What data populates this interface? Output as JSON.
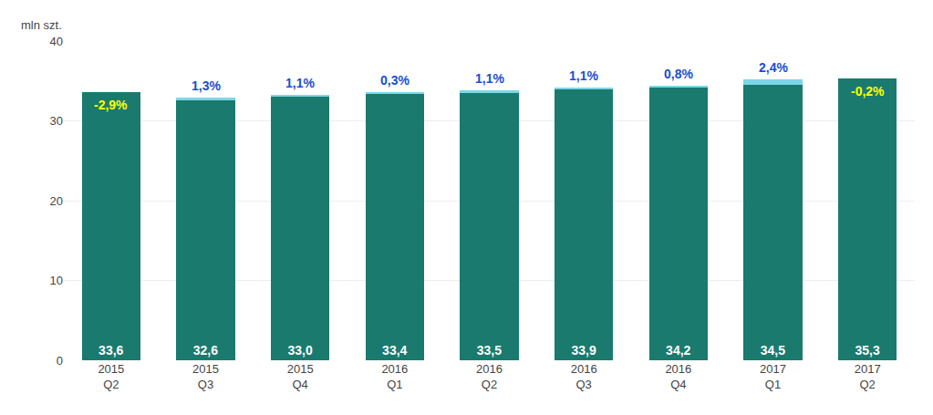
{
  "chart_data": {
    "type": "bar",
    "ylabel": "mln szt.",
    "categories": [
      "2015\nQ2",
      "2015\nQ3",
      "2015\nQ4",
      "2016\nQ1",
      "2016\nQ2",
      "2016\nQ3",
      "2016\nQ4",
      "2017\nQ1",
      "2017\nQ2"
    ],
    "series": [
      {
        "color": "#1a7a6e",
        "values": [
          33.6,
          32.6,
          33.0,
          33.4,
          33.5,
          33.9,
          34.2,
          34.5,
          35.3
        ],
        "value_labels": [
          "33,6",
          "32,6",
          "33,0",
          "33,4",
          "33,5",
          "33,9",
          "34,2",
          "34,5",
          "35,3"
        ]
      },
      {
        "color": "#7dd6e8",
        "values": [
          0.0,
          0.35,
          0.3,
          0.2,
          0.3,
          0.28,
          0.22,
          0.72,
          0.0
        ]
      }
    ],
    "stacked": true,
    "data_labels": true,
    "annotations": [
      {
        "text": "-2,9%",
        "color": "yellow",
        "inside": true
      },
      {
        "text": "1,3%",
        "color": "#1a4fcc",
        "inside": false
      },
      {
        "text": "1,1%",
        "color": "#1a4fcc",
        "inside": false
      },
      {
        "text": "0,3%",
        "color": "#1a4fcc",
        "inside": false
      },
      {
        "text": "1,1%",
        "color": "#1a4fcc",
        "inside": false
      },
      {
        "text": "1,1%",
        "color": "#1a4fcc",
        "inside": false
      },
      {
        "text": "0,8%",
        "color": "#1a4fcc",
        "inside": false
      },
      {
        "text": "2,4%",
        "color": "#1a4fcc",
        "inside": false
      },
      {
        "text": "-0,2%",
        "color": "yellow",
        "inside": true
      }
    ],
    "ylim": [
      0,
      40
    ],
    "yticks": [
      0,
      10,
      20,
      30,
      40
    ],
    "grid": true
  }
}
